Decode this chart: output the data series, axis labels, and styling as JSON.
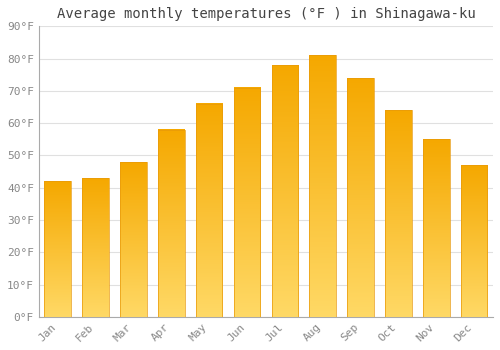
{
  "title": "Average monthly temperatures (°F ) in Shinagawa-ku",
  "months": [
    "Jan",
    "Feb",
    "Mar",
    "Apr",
    "May",
    "Jun",
    "Jul",
    "Aug",
    "Sep",
    "Oct",
    "Nov",
    "Dec"
  ],
  "values": [
    42,
    43,
    48,
    58,
    66,
    71,
    78,
    81,
    74,
    64,
    55,
    47
  ],
  "bar_color_top": "#F5A800",
  "bar_color_bottom": "#FFD966",
  "background_color": "#FFFFFF",
  "grid_color": "#E0E0E0",
  "ylim": [
    0,
    90
  ],
  "yticks": [
    0,
    10,
    20,
    30,
    40,
    50,
    60,
    70,
    80,
    90
  ],
  "title_fontsize": 10,
  "tick_fontsize": 8,
  "font_family": "monospace",
  "tick_color": "#888888",
  "spine_color": "#AAAAAA"
}
